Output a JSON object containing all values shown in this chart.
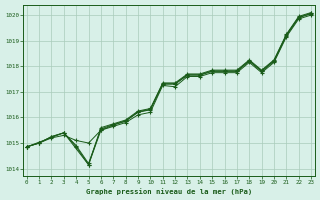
{
  "title": "Graphe pression niveau de la mer (hPa)",
  "bg_color": "#d8f0e8",
  "grid_color": "#aaccbb",
  "line_color": "#1a5c1a",
  "marker_color": "#1a5c1a",
  "ylim": [
    1013.7,
    1020.4
  ],
  "xlim": [
    -0.3,
    23.3
  ],
  "yticks": [
    1014,
    1015,
    1016,
    1017,
    1018,
    1019,
    1020
  ],
  "xticks": [
    0,
    1,
    2,
    3,
    4,
    5,
    6,
    7,
    8,
    9,
    10,
    11,
    12,
    13,
    14,
    15,
    16,
    17,
    18,
    19,
    20,
    21,
    22,
    23
  ],
  "series": [
    {
      "x": [
        0,
        1,
        2,
        3,
        4,
        5,
        6,
        7,
        8,
        9,
        10,
        11,
        12,
        13,
        14,
        15,
        16,
        17,
        18,
        19,
        20,
        21,
        22,
        23
      ],
      "y": [
        1014.85,
        1015.0,
        1015.2,
        1015.3,
        1015.1,
        1015.0,
        1015.5,
        1015.65,
        1015.8,
        1016.1,
        1016.2,
        1017.25,
        1017.2,
        1017.6,
        1017.6,
        1017.75,
        1017.75,
        1017.75,
        1018.15,
        1017.75,
        1018.15,
        1019.15,
        1019.85,
        1020.0
      ]
    },
    {
      "x": [
        0,
        1,
        2,
        3,
        4,
        5,
        6,
        7,
        8,
        9,
        10,
        11,
        12,
        13,
        14,
        15,
        16,
        17,
        18,
        19,
        20,
        21,
        22,
        23
      ],
      "y": [
        1014.85,
        1015.0,
        1015.25,
        1015.4,
        1014.85,
        1014.15,
        1015.5,
        1015.7,
        1015.85,
        1016.2,
        1016.3,
        1017.3,
        1017.3,
        1017.65,
        1017.65,
        1017.8,
        1017.8,
        1017.8,
        1018.2,
        1017.8,
        1018.2,
        1019.2,
        1019.9,
        1020.05
      ]
    },
    {
      "x": [
        0,
        1,
        2,
        3,
        4,
        5,
        6,
        7,
        8,
        9,
        10,
        11,
        12,
        13,
        14,
        15,
        16,
        17,
        18,
        19,
        20,
        21,
        22,
        23
      ],
      "y": [
        1014.85,
        1015.0,
        1015.25,
        1015.4,
        1014.9,
        1014.2,
        1015.55,
        1015.72,
        1015.87,
        1016.22,
        1016.32,
        1017.32,
        1017.32,
        1017.67,
        1017.67,
        1017.82,
        1017.82,
        1017.82,
        1018.22,
        1017.82,
        1018.22,
        1019.22,
        1019.92,
        1020.07
      ]
    },
    {
      "x": [
        0,
        3,
        5,
        6,
        7,
        8,
        9,
        10,
        11,
        12,
        13,
        14,
        15,
        16,
        17,
        18,
        19,
        20,
        21,
        22,
        23
      ],
      "y": [
        1014.85,
        1015.4,
        1014.15,
        1015.6,
        1015.75,
        1015.9,
        1016.25,
        1016.35,
        1017.35,
        1017.35,
        1017.7,
        1017.7,
        1017.85,
        1017.85,
        1017.85,
        1018.25,
        1017.85,
        1018.25,
        1019.25,
        1019.95,
        1020.1
      ]
    }
  ]
}
